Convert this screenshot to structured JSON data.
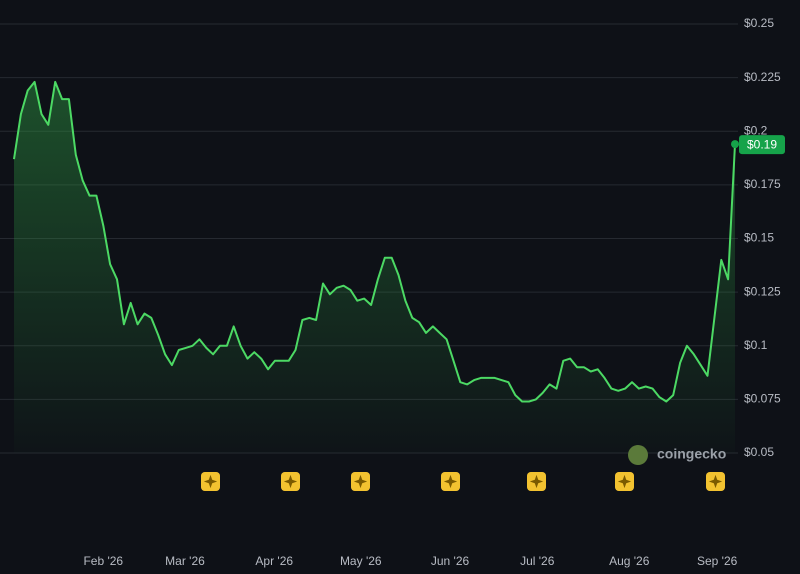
{
  "chart_data": {
    "type": "area",
    "values": [
      0.187,
      0.208,
      0.219,
      0.223,
      0.208,
      0.203,
      0.223,
      0.215,
      0.215,
      0.189,
      0.177,
      0.17,
      0.17,
      0.156,
      0.138,
      0.131,
      0.11,
      0.12,
      0.11,
      0.115,
      0.113,
      0.105,
      0.096,
      0.091,
      0.098,
      0.099,
      0.1,
      0.103,
      0.099,
      0.096,
      0.1,
      0.1,
      0.109,
      0.1,
      0.094,
      0.097,
      0.094,
      0.089,
      0.093,
      0.093,
      0.093,
      0.098,
      0.112,
      0.113,
      0.112,
      0.129,
      0.124,
      0.127,
      0.128,
      0.126,
      0.121,
      0.122,
      0.119,
      0.131,
      0.141,
      0.141,
      0.133,
      0.121,
      0.113,
      0.111,
      0.106,
      0.109,
      0.106,
      0.103,
      0.093,
      0.083,
      0.082,
      0.084,
      0.085,
      0.085,
      0.085,
      0.084,
      0.083,
      0.077,
      0.074,
      0.074,
      0.075,
      0.078,
      0.082,
      0.08,
      0.093,
      0.094,
      0.09,
      0.09,
      0.088,
      0.089,
      0.085,
      0.08,
      0.079,
      0.08,
      0.083,
      0.08,
      0.081,
      0.08,
      0.076,
      0.074,
      0.077,
      0.092,
      0.1,
      0.096,
      0.091,
      0.086,
      0.113,
      0.14,
      0.131,
      0.194
    ],
    "value_labels": [
      null,
      null,
      null,
      null,
      null,
      null,
      null,
      null,
      null,
      null,
      null,
      null,
      null,
      null,
      null,
      null,
      null,
      null,
      null,
      null,
      null,
      null,
      null,
      null,
      null,
      null,
      null,
      null,
      null,
      null,
      null,
      null,
      null,
      null,
      null,
      null,
      null,
      null,
      null,
      null,
      null,
      null,
      null,
      null,
      null,
      null,
      null,
      null,
      null,
      null,
      null,
      null,
      null,
      null,
      null,
      null,
      null,
      null,
      null,
      null,
      null,
      null,
      null,
      null,
      null,
      null,
      null,
      null,
      null,
      null,
      null,
      null,
      null,
      null,
      null,
      null,
      null,
      null,
      null,
      null,
      null,
      null,
      null,
      null,
      null,
      null,
      null,
      null,
      null,
      null,
      null,
      null,
      null,
      null,
      null,
      null,
      null,
      null,
      null,
      null,
      null,
      null,
      null,
      null,
      null,
      "$0.19"
    ],
    "color": "#4cd964",
    "ylim": [
      0.05,
      0.25
    ],
    "yticks": [
      {
        "value": 0.05,
        "label": "$0.05"
      },
      {
        "value": 0.075,
        "label": "$0.075"
      },
      {
        "value": 0.1,
        "label": "$0.1"
      },
      {
        "value": 0.125,
        "label": "$0.125"
      },
      {
        "value": 0.15,
        "label": "$0.15"
      },
      {
        "value": 0.175,
        "label": "$0.175"
      },
      {
        "value": 0.2,
        "label": "$0.2"
      },
      {
        "value": 0.225,
        "label": "$0.225"
      },
      {
        "value": 0.25,
        "label": "$0.25"
      }
    ],
    "xticks": [
      {
        "value": 13.0,
        "label": "Feb '26"
      },
      {
        "value": 24.9,
        "label": "Mar '26"
      },
      {
        "value": 37.9,
        "label": "Apr '26"
      },
      {
        "value": 50.5,
        "label": "May '26"
      },
      {
        "value": 63.5,
        "label": "Jun '26"
      },
      {
        "value": 76.2,
        "label": "Jul '26"
      },
      {
        "value": 89.6,
        "label": "Aug '26"
      },
      {
        "value": 102.4,
        "label": "Sep '26"
      }
    ],
    "grid": true,
    "watermark": "coingecko"
  }
}
